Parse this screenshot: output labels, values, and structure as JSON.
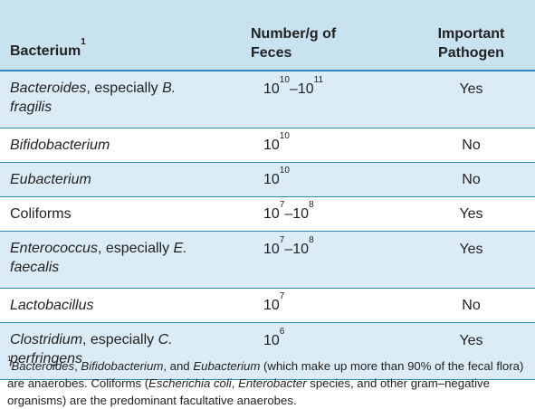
{
  "table": {
    "headers": {
      "bacterium": "Bacterium",
      "bacterium_sup": "1",
      "number_line1": "Number/g of",
      "number_line2": "Feces",
      "pathogen_line1": "Important",
      "pathogen_line2": "Pathogen"
    },
    "rows": [
      {
        "name_italic": "Bacteroides",
        "name_rest": ", especially ",
        "name_italic2": "B.",
        "name_line2": "fragilis",
        "count_base1": "10",
        "count_exp1": "10",
        "count_sep": "–",
        "count_base2": "10",
        "count_exp2": "11",
        "pathogen": "Yes"
      },
      {
        "name_italic": "Bifidobacterium",
        "count_base1": "10",
        "count_exp1": "10",
        "pathogen": "No"
      },
      {
        "name_italic": "Eubacterium",
        "count_base1": "10",
        "count_exp1": "10",
        "pathogen": "No"
      },
      {
        "name_plain": "Coliforms",
        "count_base1": "10",
        "count_exp1": "7",
        "count_sep": "–",
        "count_base2": "10",
        "count_exp2": "8",
        "pathogen": "Yes"
      },
      {
        "name_italic": "Enterococcus",
        "name_rest": ", especially ",
        "name_italic2": "E.",
        "name_line2": "faecalis",
        "count_base1": "10",
        "count_exp1": "7",
        "count_sep": "–",
        "count_base2": "10",
        "count_exp2": "8",
        "pathogen": "Yes"
      },
      {
        "name_italic": "Lactobacillus",
        "count_base1": "10",
        "count_exp1": "7",
        "pathogen": "No"
      },
      {
        "name_italic": "Clostridium",
        "name_rest": ", especially ",
        "name_italic2": "C.",
        "name_line2": "perfringens",
        "count_base1": "10",
        "count_exp1": "6",
        "pathogen": "Yes"
      }
    ]
  },
  "footnote": {
    "marker": "1",
    "t1": "Bacteroides",
    "t2": ", ",
    "t3": "Bifidobacterium",
    "t4": ", and ",
    "t5": "Eubacterium",
    "t6": " (which make up more than 90% of the fecal flora) are anaerobes. Coliforms (",
    "t7": "Escherichia coli",
    "t8": ", ",
    "t9": "Enterobacter",
    "t10": " species, and other gram–negative organisms) are the predominant facultative anaerobes."
  },
  "colors": {
    "header_bg": "#c8e2f0",
    "row_alt_bg": "#dbecf6",
    "rule": "#2a8bbf"
  }
}
